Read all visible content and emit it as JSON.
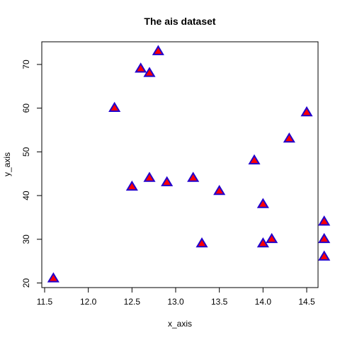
{
  "chart_data": {
    "type": "scatter",
    "title": "The ais dataset",
    "xlabel": "x_axis",
    "ylabel": "y_axis",
    "xlim": [
      11.5,
      14.8
    ],
    "ylim": [
      19.5,
      75
    ],
    "xticks": [
      11.5,
      12.0,
      12.5,
      13.0,
      13.5,
      14.0,
      14.5
    ],
    "xtick_labels": [
      "11.5",
      "12.0",
      "12.5",
      "13.0",
      "13.5",
      "14.0",
      "14.5"
    ],
    "yticks": [
      20,
      30,
      40,
      50,
      60,
      70
    ],
    "ytick_labels": [
      "20",
      "30",
      "40",
      "50",
      "60",
      "70"
    ],
    "grid": false,
    "marker": {
      "shape": "triangle",
      "fill": "#ff0000",
      "stroke": "#2200cc"
    },
    "points": [
      {
        "x": 11.6,
        "y": 21
      },
      {
        "x": 12.3,
        "y": 60
      },
      {
        "x": 12.5,
        "y": 42
      },
      {
        "x": 12.6,
        "y": 69
      },
      {
        "x": 12.7,
        "y": 68
      },
      {
        "x": 12.7,
        "y": 44
      },
      {
        "x": 12.8,
        "y": 73
      },
      {
        "x": 12.9,
        "y": 43
      },
      {
        "x": 13.2,
        "y": 44
      },
      {
        "x": 13.3,
        "y": 29
      },
      {
        "x": 13.5,
        "y": 41
      },
      {
        "x": 13.9,
        "y": 48
      },
      {
        "x": 14.0,
        "y": 38
      },
      {
        "x": 14.0,
        "y": 29
      },
      {
        "x": 14.1,
        "y": 30
      },
      {
        "x": 14.3,
        "y": 53
      },
      {
        "x": 14.5,
        "y": 59
      },
      {
        "x": 14.7,
        "y": 34
      },
      {
        "x": 14.7,
        "y": 30
      },
      {
        "x": 14.7,
        "y": 26
      }
    ]
  }
}
